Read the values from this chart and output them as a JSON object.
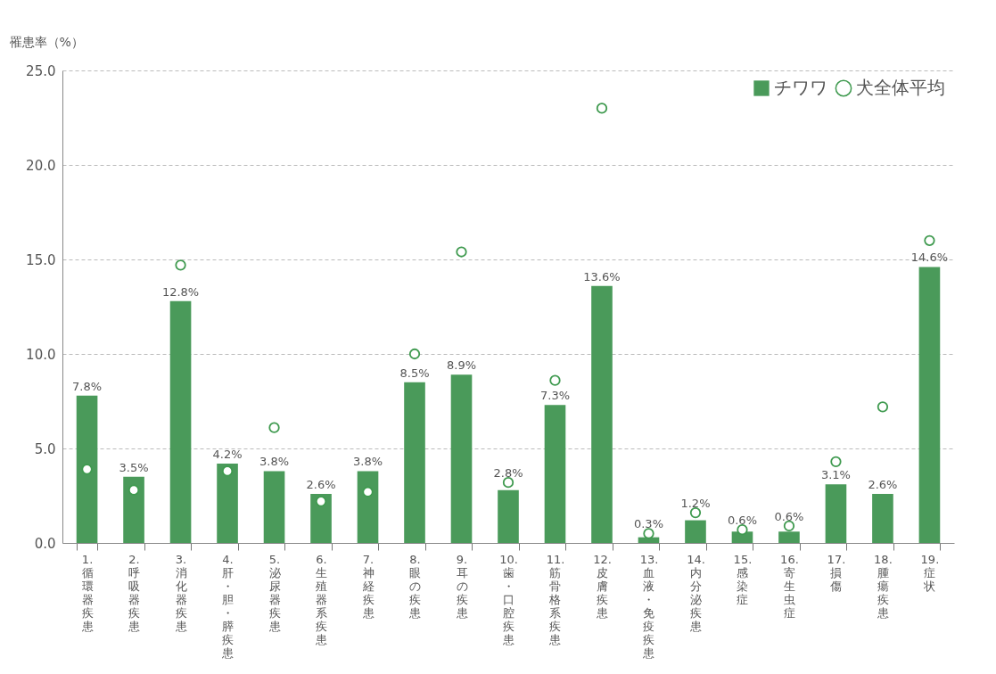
{
  "chart_data": {
    "type": "bar",
    "ylabel": "罹患率（%）",
    "categories": [
      "1.循環器疾患",
      "2.呼吸器疾患",
      "3.消化器疾患",
      "4.肝・胆・膵疾患",
      "5.泌尿器疾患",
      "6.生殖器系疾患",
      "7.神経疾患",
      "8.眼の疾患",
      "9.耳の疾患",
      "10.歯・口腔疾患",
      "11.筋骨格系疾患",
      "12.皮膚疾患",
      "13.血液・免疫疾患",
      "14.内分泌疾患",
      "15.感染症",
      "16.寄生虫症",
      "17.損傷",
      "18.腫瘍疾患",
      "19.症状"
    ],
    "series": [
      {
        "name": "チワワ",
        "color": "#4a9a5a",
        "values": [
          7.8,
          3.5,
          12.8,
          4.2,
          3.8,
          2.6,
          3.8,
          8.5,
          8.9,
          2.8,
          7.3,
          13.6,
          0.3,
          1.2,
          0.6,
          0.6,
          3.1,
          2.6,
          14.6
        ],
        "value_labels": [
          "7.8%",
          "3.5%",
          "12.8%",
          "4.2%",
          "3.8%",
          "2.6%",
          "3.8%",
          "8.5%",
          "8.9%",
          "2.8%",
          "7.3%",
          "13.6%",
          "0.3%",
          "1.2%",
          "0.6%",
          "0.6%",
          "3.1%",
          "2.6%",
          "14.6%"
        ]
      },
      {
        "name": "犬全体平均",
        "type": "scatter",
        "color": "#3f9a4f",
        "values": [
          3.9,
          2.8,
          14.7,
          3.8,
          6.1,
          2.2,
          2.7,
          10.0,
          15.4,
          3.2,
          8.6,
          23.0,
          0.5,
          1.6,
          0.7,
          0.9,
          4.3,
          7.2,
          16.0
        ]
      }
    ],
    "ylim": [
      0,
      25
    ],
    "yticks": [
      {
        "value": 0,
        "label": "0.0"
      },
      {
        "value": 5,
        "label": "5.0"
      },
      {
        "value": 10,
        "label": "10.0"
      },
      {
        "value": 15,
        "label": "15.0"
      },
      {
        "value": 20,
        "label": "20.0"
      },
      {
        "value": 25,
        "label": "25.0"
      }
    ],
    "grid": "y",
    "legend": "top right",
    "marker": "circle"
  }
}
